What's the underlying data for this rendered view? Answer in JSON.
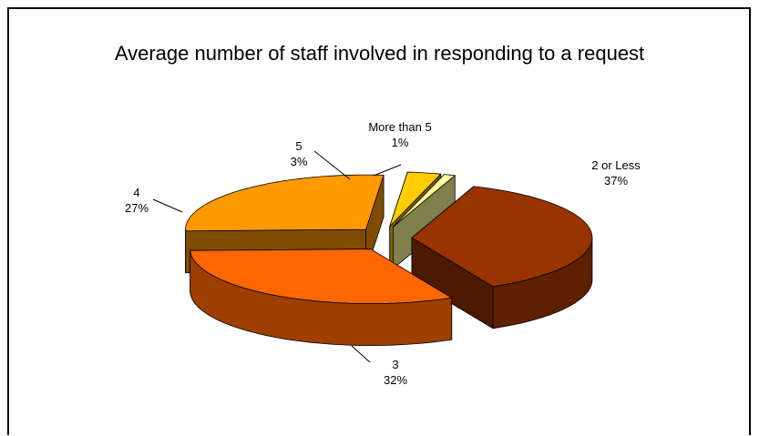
{
  "chart_data": {
    "type": "pie",
    "title": "Average number of staff involved in responding to a request",
    "slices": [
      {
        "label": "2 or Less",
        "value": 37,
        "pct_label": "37%",
        "color": "#993300"
      },
      {
        "label": "3",
        "value": 32,
        "pct_label": "32%",
        "color": "#FF6600"
      },
      {
        "label": "4",
        "value": 27,
        "pct_label": "27%",
        "color": "#FF9900"
      },
      {
        "label": "5",
        "value": 3,
        "pct_label": "3%",
        "color": "#FFCC00"
      },
      {
        "label": "More than 5",
        "value": 1,
        "pct_label": "1%",
        "color": "#FFFF99"
      }
    ],
    "exploded": true,
    "three_d": true
  }
}
